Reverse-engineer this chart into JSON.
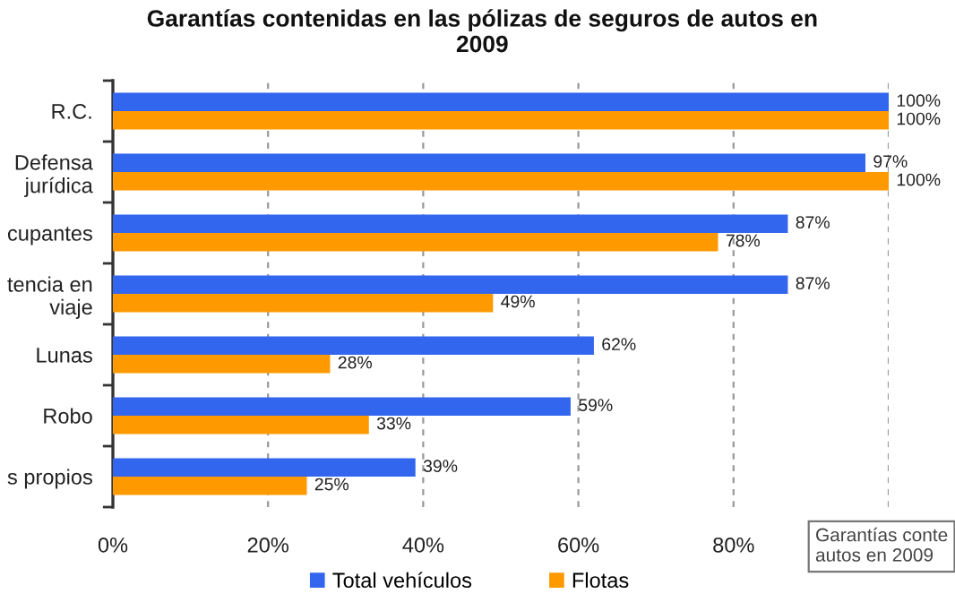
{
  "chart_data": {
    "type": "bar",
    "orientation": "horizontal",
    "title": "Garantías contenidas en las pólizas de seguros de autos en\n2009",
    "categories": [
      "R.C.",
      "Defensa\njurídica",
      "cupantes",
      "tencia en\nviaje",
      "Lunas",
      "Robo",
      "s propios"
    ],
    "series": [
      {
        "name": "Total vehículos",
        "color": "#3366ee",
        "values": [
          100,
          97,
          87,
          87,
          62,
          59,
          39
        ],
        "value_labels": [
          "100%",
          "97%",
          "87%",
          "87%",
          "62%",
          "59%",
          "39%"
        ]
      },
      {
        "name": "Flotas",
        "color": "#ff9900",
        "values": [
          100,
          100,
          78,
          49,
          28,
          33,
          25
        ],
        "value_labels": [
          "100%",
          "100%",
          "78%",
          "49%",
          "28%",
          "33%",
          "25%"
        ]
      }
    ],
    "xlim": [
      0,
      100
    ],
    "xticks": [
      {
        "value": 0,
        "label": "0%"
      },
      {
        "value": 20,
        "label": "20%"
      },
      {
        "value": 40,
        "label": "40%"
      },
      {
        "value": 60,
        "label": "60%"
      },
      {
        "value": 80,
        "label": "80%"
      },
      {
        "value": 100,
        "label": null
      }
    ],
    "grid": "x",
    "legend": "bottom",
    "annotations": [
      "Garantías conte\nautos en 2009"
    ]
  }
}
